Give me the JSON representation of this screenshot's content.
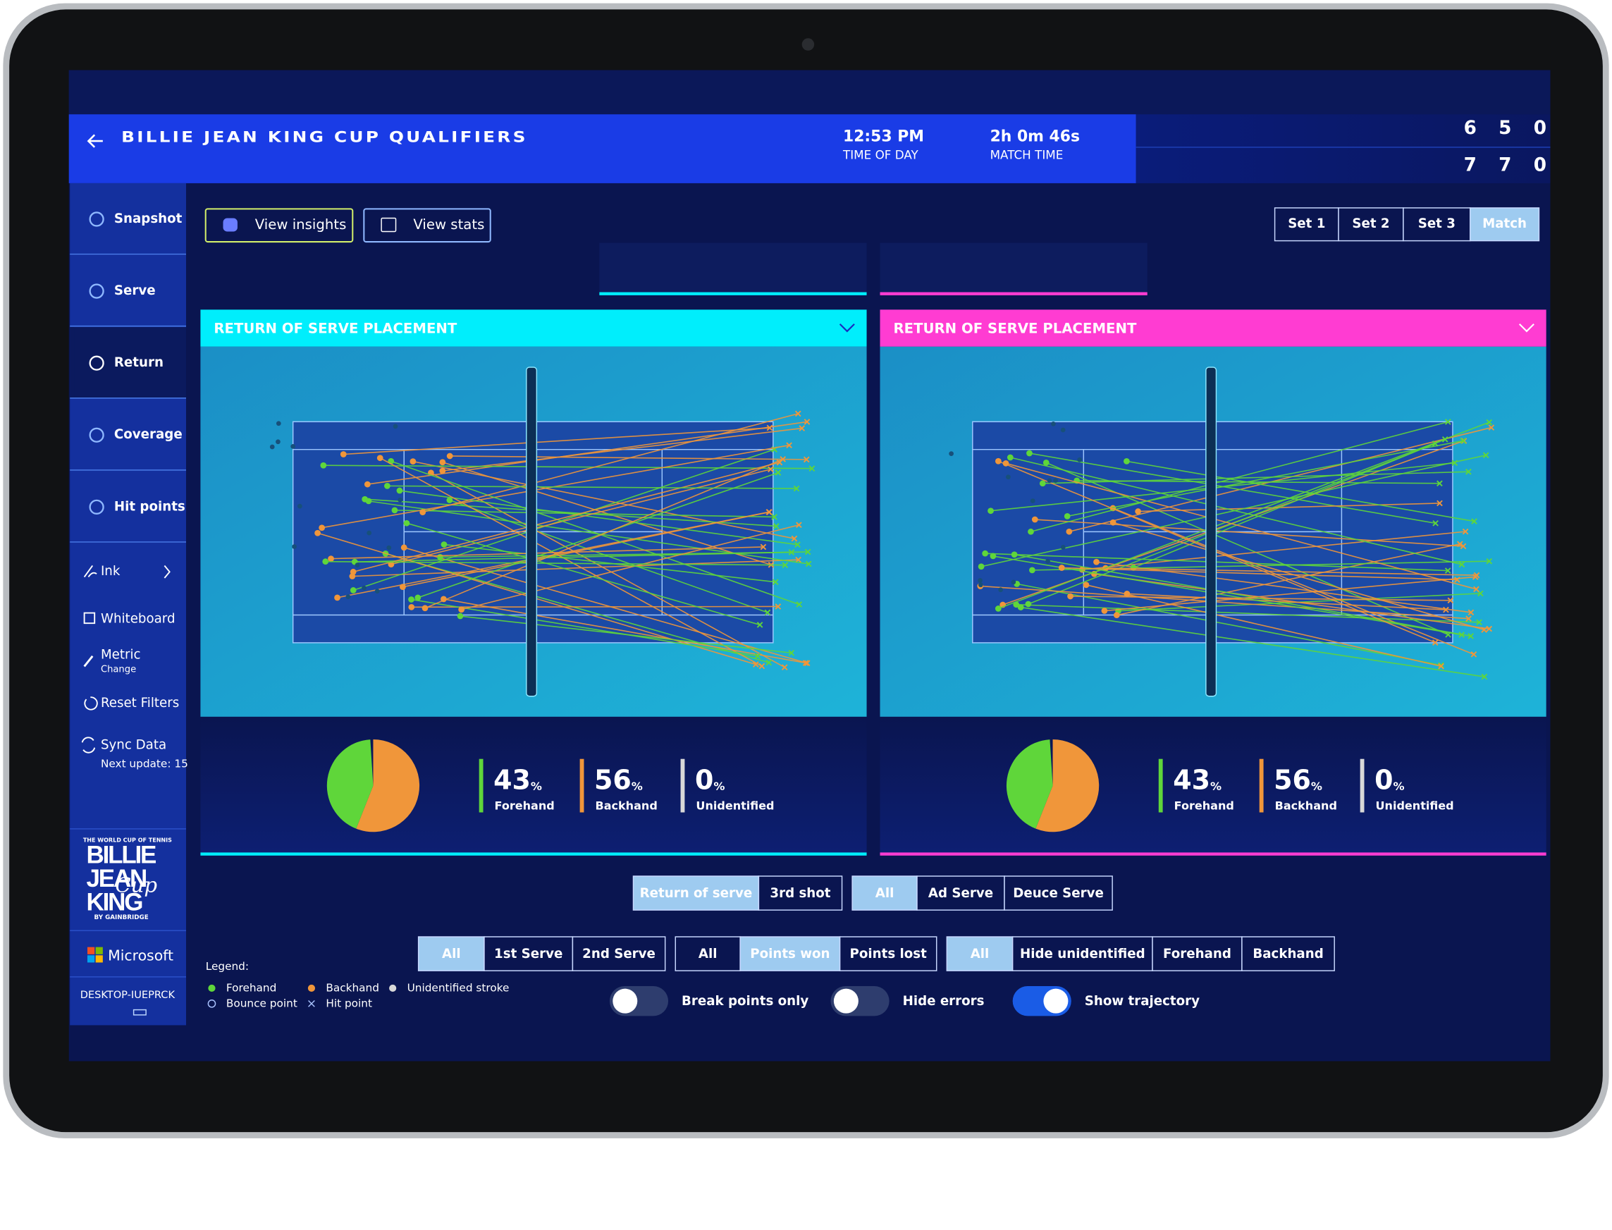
{
  "header": {
    "title": "BILLIE JEAN KING CUP QUALIFIERS",
    "time_of_day": {
      "value": "12:53 PM",
      "label": "TIME OF DAY"
    },
    "match_time": {
      "value": "2h 0m 46s",
      "label": "MATCH TIME"
    },
    "scores": [
      [
        6,
        5,
        0
      ],
      [
        7,
        7,
        0
      ]
    ]
  },
  "nav": {
    "items": [
      "Snapshot",
      "Serve",
      "Return",
      "Coverage",
      "Hit points"
    ],
    "selected": 2
  },
  "tools": {
    "ink": "Ink",
    "whiteboard": "Whiteboard",
    "metric": "Metric",
    "metric_sub": "Change",
    "reset": "Reset Filters",
    "sync": "Sync Data",
    "sync_sub": "Next update: 15"
  },
  "brand": {
    "tagline": "THE WORLD CUP OF TENNIS",
    "words": [
      "BILLIE",
      "JEAN",
      "KING"
    ],
    "script": "Cup",
    "sponsor": "BY GAINBRIDGE",
    "partner": "Microsoft",
    "device": "DESKTOP-IUEPRCK"
  },
  "actions": [
    "View insights",
    "View stats"
  ],
  "sets": {
    "options": [
      "Set 1",
      "Set 2",
      "Set 3",
      "Match"
    ],
    "selected": 3
  },
  "panels": [
    {
      "title": "RETURN OF SERVE PLACEMENT",
      "color": "#00eefc",
      "stats": [
        {
          "value": 43,
          "unit": "%",
          "label": "Forehand",
          "color": "#5fd63a"
        },
        {
          "value": 56,
          "unit": "%",
          "label": "Backhand",
          "color": "#f0963a"
        },
        {
          "value": 0,
          "unit": "%",
          "label": "Unidentified",
          "color": "#d8d8d8"
        }
      ]
    },
    {
      "title": "RETURN OF SERVE PLACEMENT",
      "color": "#ff3cd2",
      "stats": [
        {
          "value": 43,
          "unit": "%",
          "label": "Forehand",
          "color": "#5fd63a"
        },
        {
          "value": 56,
          "unit": "%",
          "label": "Backhand",
          "color": "#f0963a"
        },
        {
          "value": 0,
          "unit": "%",
          "label": "Unidentified",
          "color": "#d8d8d8"
        }
      ]
    }
  ],
  "filters": [
    [
      {
        "options": [
          "Return of serve",
          "3rd shot"
        ],
        "selected": 0
      },
      {
        "options": [
          "All",
          "Ad Serve",
          "Deuce Serve"
        ],
        "selected": 0
      }
    ],
    [
      {
        "options": [
          "All",
          "1st Serve",
          "2nd Serve"
        ],
        "selected": 0
      },
      {
        "options": [
          "All",
          "Points won",
          "Points lost"
        ],
        "selected": 1
      },
      {
        "options": [
          "All",
          "Hide unidentified",
          "Forehand",
          "Backhand"
        ],
        "selected": 0
      }
    ]
  ],
  "toggles": [
    {
      "label": "Break points only",
      "on": false
    },
    {
      "label": "Hide errors",
      "on": false
    },
    {
      "label": "Show trajectory",
      "on": true
    }
  ],
  "legend": {
    "title": "Legend:",
    "items": [
      "Forehand",
      "Backhand",
      "Unidentified stroke",
      "Bounce point",
      "Hit point"
    ]
  }
}
